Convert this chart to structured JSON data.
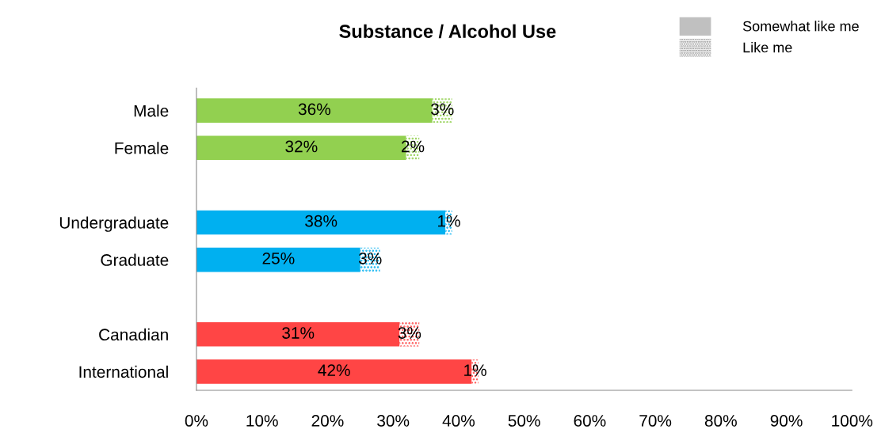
{
  "chart_data": {
    "type": "bar",
    "orientation": "horizontal",
    "stacked": true,
    "title": "Substance / Alcohol Use",
    "categories": [
      "Male",
      "Female",
      null,
      "Undergraduate",
      "Graduate",
      null,
      "Canadian",
      "International"
    ],
    "series": [
      {
        "name": "Somewhat like me",
        "color": "#c0c0c0",
        "colors": [
          "#92d050",
          "#92d050",
          null,
          "#00b0f0",
          "#00b0f0",
          null,
          "#ff4545",
          "#ff4545"
        ],
        "values": [
          36,
          32,
          null,
          38,
          25,
          null,
          31,
          42
        ],
        "value_labels": [
          "36%",
          "32%",
          null,
          "38%",
          "25%",
          null,
          "31%",
          "42%"
        ]
      },
      {
        "name": "Like me",
        "color": "#909090",
        "colors": [
          "#92d050",
          "#92d050",
          null,
          "#00b0f0",
          "#00b0f0",
          null,
          "#ff4545",
          "#ff4545"
        ],
        "values": [
          3,
          2,
          null,
          1,
          3,
          null,
          3,
          1
        ],
        "value_labels": [
          "3%",
          "2%",
          null,
          "1%",
          "3%",
          null,
          "3%",
          "1%"
        ]
      }
    ],
    "xlim": [
      0,
      100
    ],
    "xticks": [
      {
        "value": 0,
        "label": "0%"
      },
      {
        "value": 10,
        "label": "10%"
      },
      {
        "value": 20,
        "label": "20%"
      },
      {
        "value": 30,
        "label": "30%"
      },
      {
        "value": 40,
        "label": "40%"
      },
      {
        "value": 50,
        "label": "50%"
      },
      {
        "value": 60,
        "label": "60%"
      },
      {
        "value": 70,
        "label": "70%"
      },
      {
        "value": 80,
        "label": "80%"
      },
      {
        "value": 90,
        "label": "90%"
      },
      {
        "value": 100,
        "label": "100%"
      }
    ],
    "grid": false,
    "legend": "top right"
  }
}
